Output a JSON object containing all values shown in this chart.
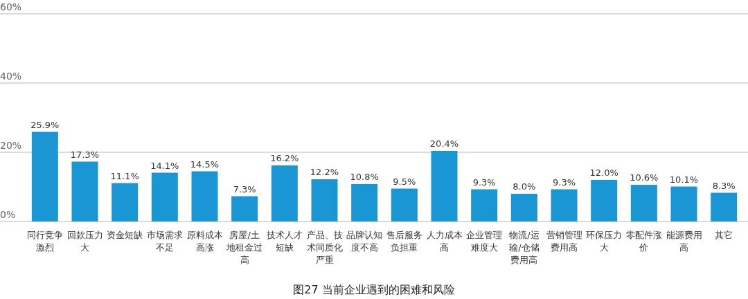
{
  "chart_data": {
    "type": "bar",
    "title": "图27 当前企业遇到的困难和风险",
    "categories": [
      "同行竞争激烈",
      "回款压力大",
      "资金短缺",
      "市场需求不足",
      "原料成本高涨",
      "房屋/土地租金过高",
      "技术人才短缺",
      "产品、技术同质化严重",
      "品牌认知度不高",
      "售后服务负担重",
      "人力成本高",
      "企业管理难度大",
      "物流/运输/仓储费用高",
      "营销管理费用高",
      "环保压力大",
      "零配件涨价",
      "能源费用高",
      "其它"
    ],
    "values": [
      25.9,
      17.3,
      11.1,
      14.1,
      14.5,
      7.3,
      16.2,
      12.2,
      10.8,
      9.5,
      20.4,
      9.3,
      8.0,
      9.3,
      12.0,
      10.6,
      10.1,
      8.3
    ],
    "value_labels": [
      "25.9%",
      "17.3%",
      "11.1%",
      "14.1%",
      "14.5%",
      "7.3%",
      "16.2%",
      "12.2%",
      "10.8%",
      "9.5%",
      "20.4%",
      "9.3%",
      "8.0%",
      "9.3%",
      "12.0%",
      "10.6%",
      "10.1%",
      "8.3%"
    ],
    "color": "#1a96d4",
    "ylim": [
      0,
      60
    ],
    "yticks": [
      {
        "value": 0,
        "label": "0%"
      },
      {
        "value": 20,
        "label": "20%"
      },
      {
        "value": 40,
        "label": "40%"
      },
      {
        "value": 60,
        "label": "60%"
      }
    ],
    "grid": "y"
  }
}
